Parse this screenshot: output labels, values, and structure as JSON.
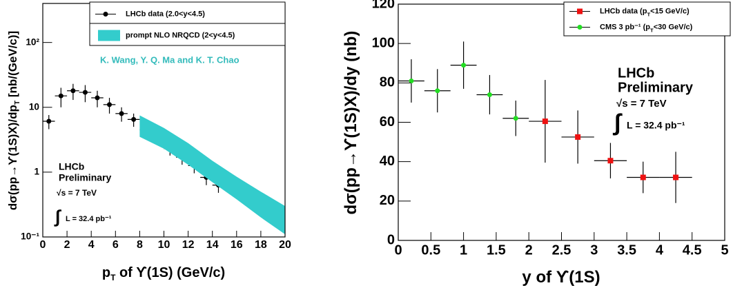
{
  "chart_data": [
    {
      "type": "errorbar",
      "y_label": [
        "dσ(pp→ϒ(1S)X)/dp",
        "T",
        " [nb/(GeV/c)]"
      ],
      "x_label": [
        "p",
        "T",
        " of ϒ(1S) (GeV/c)"
      ],
      "annotation": "K. Wang, Y. Q. Ma and K. T. Chao",
      "notes": [
        "LHCb",
        "Preliminary",
        "√s = 7 TeV",
        "∫",
        "L = 32.4 pb⁻¹"
      ],
      "xlim": [
        0,
        20
      ],
      "xticks": [
        0,
        2,
        4,
        6,
        8,
        10,
        12,
        14,
        16,
        18,
        20
      ],
      "ylim": [
        0.1,
        400
      ],
      "log_y": true,
      "yticks": [
        {
          "value": 0.1,
          "label": "10⁻¹"
        },
        1,
        10,
        {
          "value": 100,
          "label": "10²"
        }
      ],
      "series": [
        {
          "name": "LHCb data (2.0<y<4.5)",
          "color": "#000000",
          "marker": "circle",
          "x": [
            0.5,
            1.5,
            2.5,
            3.5,
            4.5,
            5.5,
            6.5,
            7.5,
            8.5,
            9.5,
            10.5,
            11.5,
            12.5,
            13.5,
            14.5
          ],
          "xerr": [
            0.5,
            0.5,
            0.5,
            0.5,
            0.5,
            0.5,
            0.5,
            0.5,
            0.5,
            0.5,
            0.5,
            0.5,
            0.5,
            0.5,
            0.5
          ],
          "values": [
            6.1,
            15,
            18,
            17,
            14,
            11,
            8,
            6.5,
            4.5,
            3.4,
            2.3,
            1.7,
            1.26,
            0.83,
            0.63
          ],
          "errors": [
            1.5,
            5,
            5,
            5,
            4,
            3,
            2,
            1.5,
            1,
            0.8,
            0.5,
            0.4,
            0.3,
            0.2,
            0.15
          ]
        },
        {
          "name": "prompt NLO NRQCD (2<y<4.5)",
          "color": "#33cccc",
          "type": "band",
          "x": [
            8,
            10,
            12,
            14,
            16,
            18,
            20
          ],
          "upper": [
            7.5,
            4.8,
            2.8,
            1.5,
            0.85,
            0.5,
            0.3
          ],
          "lower": [
            3.5,
            2.3,
            1.3,
            0.7,
            0.38,
            0.2,
            0.11
          ]
        }
      ]
    },
    {
      "type": "errorbar",
      "y_label": [
        "dσ(pp→ϒ(1S)X)/dy (nb)"
      ],
      "x_label": [
        "y of ϒ(1S)"
      ],
      "notes": [
        "LHCb",
        "Preliminary",
        "√s = 7 TeV",
        "∫",
        "L = 32.4 pb⁻¹"
      ],
      "xlim": [
        0,
        5
      ],
      "xticks": [
        0,
        0.5,
        1,
        1.5,
        2,
        2.5,
        3,
        3.5,
        4,
        4.5,
        5
      ],
      "ylim": [
        0,
        120
      ],
      "yticks": [
        0,
        20,
        40,
        60,
        80,
        100,
        120
      ],
      "series": [
        {
          "name": [
            "LHCb data (p",
            "T",
            "<15 GeV/c)"
          ],
          "color": "#ee1111",
          "marker": "square",
          "x": [
            2.25,
            2.75,
            3.25,
            3.75,
            4.25
          ],
          "xerr": [
            0.25,
            0.25,
            0.25,
            0.25,
            0.25
          ],
          "values": [
            60.5,
            52.5,
            40.5,
            32,
            32
          ],
          "errors": [
            21,
            13.5,
            9,
            8,
            13
          ]
        },
        {
          "name": [
            "CMS 3 pb⁻¹ (p",
            "T",
            "<30 GeV/c)"
          ],
          "color": "#22dd22",
          "marker": "circle",
          "x": [
            0.2,
            0.6,
            1.0,
            1.4,
            1.8
          ],
          "xerr": [
            0.2,
            0.2,
            0.2,
            0.2,
            0.2
          ],
          "values": [
            81,
            76,
            89,
            74,
            62
          ],
          "errors": [
            11,
            11,
            12,
            10,
            9
          ]
        }
      ]
    }
  ]
}
